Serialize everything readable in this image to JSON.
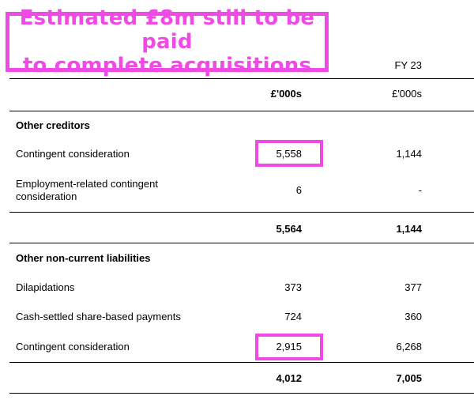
{
  "callout": {
    "line1": "Estimated £8m still to be paid",
    "line2": "to complete acquisitions"
  },
  "header": {
    "period_prior": "FY 23",
    "unit_current": "£'000s",
    "unit_prior": "£'000s"
  },
  "sections": {
    "other_creditors": {
      "title": "Other creditors",
      "rows": [
        {
          "label": "Contingent consideration",
          "current": "5,558",
          "prior": "1,144"
        },
        {
          "label_line1": "Employment-related contingent",
          "label_line2": "consideration",
          "current": "6",
          "prior": "-"
        }
      ],
      "total": {
        "current": "5,564",
        "prior": "1,144"
      }
    },
    "other_noncurrent": {
      "title": "Other non-current liabilities",
      "rows": [
        {
          "label": "Dilapidations",
          "current": "373",
          "prior": "377"
        },
        {
          "label": "Cash-settled share-based payments",
          "current": "724",
          "prior": "360"
        },
        {
          "label": "Contingent consideration",
          "current": "2,915",
          "prior": "6,268"
        }
      ],
      "total": {
        "current": "4,012",
        "prior": "7,005"
      }
    }
  },
  "colors": {
    "highlight": "#f04ae6"
  }
}
